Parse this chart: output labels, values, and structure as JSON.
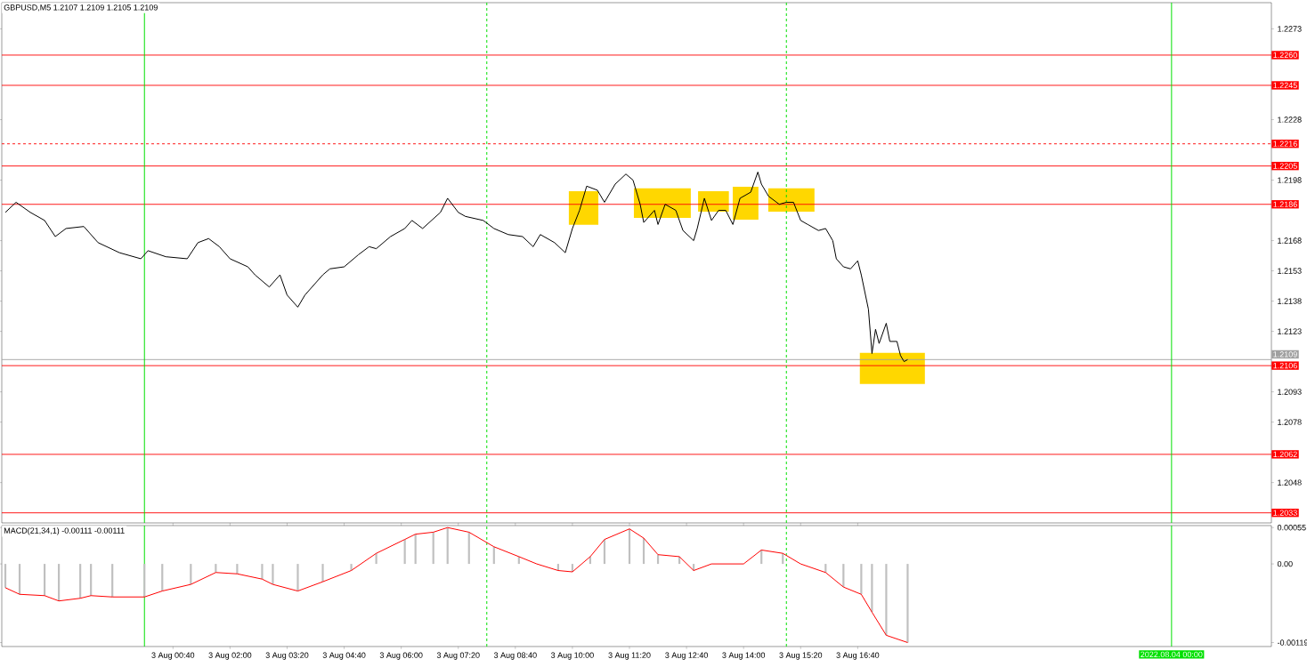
{
  "chart_data": [
    {
      "type": "line",
      "title": "GBPUSD,M5 1.2107 1.2109 1.2105 1.2109",
      "xlim": [
        "2022-08-02T20:40",
        "2022-08-04T02:20"
      ],
      "ylim": [
        1.2028,
        1.2286
      ],
      "tick_labels": "y",
      "yticks": [
        1.2273,
        1.2228,
        1.2198,
        1.2168,
        1.2153,
        1.2138,
        1.2123,
        1.2093,
        1.2078,
        1.2048
      ],
      "series": [
        {
          "color": "#000000",
          "x": [
            "2022-08-02T20:45",
            "2022-08-02T21:00",
            "2022-08-02T21:20",
            "2022-08-02T21:40",
            "2022-08-02T21:55",
            "2022-08-02T22:10",
            "2022-08-02T22:35",
            "2022-08-02T22:55",
            "2022-08-02T23:25",
            "2022-08-02T23:55",
            "2022-08-03T00:05",
            "2022-08-03T00:30",
            "2022-08-03T01:00",
            "2022-08-03T01:15",
            "2022-08-03T01:30",
            "2022-08-03T01:45",
            "2022-08-03T02:00",
            "2022-08-03T02:25",
            "2022-08-03T02:35",
            "2022-08-03T02:55",
            "2022-08-03T03:10",
            "2022-08-03T03:20",
            "2022-08-03T03:35",
            "2022-08-03T03:45",
            "2022-08-03T04:10",
            "2022-08-03T04:20",
            "2022-08-03T04:40",
            "2022-08-03T05:00",
            "2022-08-03T05:15",
            "2022-08-03T05:25",
            "2022-08-03T05:45",
            "2022-08-03T06:05",
            "2022-08-03T06:15",
            "2022-08-03T06:30",
            "2022-08-03T06:55",
            "2022-08-03T07:05",
            "2022-08-03T07:20",
            "2022-08-03T07:30",
            "2022-08-03T07:55",
            "2022-08-03T08:10",
            "2022-08-03T08:30",
            "2022-08-03T08:50",
            "2022-08-03T09:05",
            "2022-08-03T09:15",
            "2022-08-03T09:35",
            "2022-08-03T09:50",
            "2022-08-03T10:00",
            "2022-08-03T10:10",
            "2022-08-03T10:20",
            "2022-08-03T10:35",
            "2022-08-03T10:45",
            "2022-08-03T11:00",
            "2022-08-03T11:15",
            "2022-08-03T11:25",
            "2022-08-03T11:35",
            "2022-08-03T11:40",
            "2022-08-03T11:55",
            "2022-08-03T12:00",
            "2022-08-03T12:10",
            "2022-08-03T12:25",
            "2022-08-03T12:35",
            "2022-08-03T12:50",
            "2022-08-03T12:55",
            "2022-08-03T13:05",
            "2022-08-03T13:15",
            "2022-08-03T13:25",
            "2022-08-03T13:35",
            "2022-08-03T13:45",
            "2022-08-03T13:55",
            "2022-08-03T14:10",
            "2022-08-03T14:20",
            "2022-08-03T14:25",
            "2022-08-03T14:35",
            "2022-08-03T14:50",
            "2022-08-03T15:00",
            "2022-08-03T15:10",
            "2022-08-03T15:20",
            "2022-08-03T15:30",
            "2022-08-03T15:45",
            "2022-08-03T15:55",
            "2022-08-03T16:05",
            "2022-08-03T16:10",
            "2022-08-03T16:20",
            "2022-08-03T16:30",
            "2022-08-03T16:40",
            "2022-08-03T16:45",
            "2022-08-03T16:55",
            "2022-08-03T17:00",
            "2022-08-03T17:05",
            "2022-08-03T17:10",
            "2022-08-03T17:20",
            "2022-08-03T17:25",
            "2022-08-03T17:35",
            "2022-08-03T17:40",
            "2022-08-03T17:45",
            "2022-08-03T17:50"
          ],
          "values": [
            1.2182,
            1.2187,
            1.2182,
            1.2178,
            1.217,
            1.2174,
            1.2175,
            1.2167,
            1.2162,
            1.2159,
            1.2163,
            1.216,
            1.2159,
            1.2167,
            1.2169,
            1.2165,
            1.2159,
            1.2155,
            1.2151,
            1.2145,
            1.2151,
            1.2141,
            1.2135,
            1.2141,
            1.2151,
            1.2154,
            1.2155,
            1.2161,
            1.2165,
            1.2164,
            1.217,
            1.2174,
            1.2178,
            1.2174,
            1.2182,
            1.2189,
            1.2182,
            1.218,
            1.2178,
            1.2174,
            1.2171,
            1.217,
            1.2165,
            1.2171,
            1.2167,
            1.2162,
            1.2174,
            1.2183,
            1.2195,
            1.2193,
            1.2187,
            1.2196,
            1.2201,
            1.2198,
            1.2186,
            1.2177,
            1.2183,
            1.2176,
            1.2186,
            1.2183,
            1.2173,
            1.2168,
            1.2174,
            1.2189,
            1.2178,
            1.2183,
            1.2183,
            1.2176,
            1.2189,
            1.2192,
            1.2202,
            1.2196,
            1.219,
            1.2186,
            1.2187,
            1.2187,
            1.2178,
            1.2176,
            1.2173,
            1.2174,
            1.2168,
            1.2159,
            1.2155,
            1.2154,
            1.2158,
            1.2151,
            1.2134,
            1.2112,
            1.2124,
            1.2117,
            1.2127,
            1.2118,
            1.2118,
            1.2111,
            1.2108,
            1.2109
          ]
        }
      ],
      "ref_lines": [
        {
          "axis": "y",
          "value": 1.226,
          "label": "1.2260",
          "color": "#ff0000"
        },
        {
          "axis": "y",
          "value": 1.2245,
          "label": "1.2245",
          "color": "#ff0000"
        },
        {
          "axis": "y",
          "value": 1.2216,
          "label": "1.2216",
          "color": "#ff0000",
          "line_style": "dashed"
        },
        {
          "axis": "y",
          "value": 1.2205,
          "label": "1.2205",
          "color": "#ff0000"
        },
        {
          "axis": "y",
          "value": 1.2186,
          "label": "1.2186",
          "color": "#ff0000"
        },
        {
          "axis": "y",
          "value": 1.2106,
          "label": "1.2106",
          "color": "#ff0000"
        },
        {
          "axis": "y",
          "value": 1.2109,
          "label": "1.2109",
          "color": "#a0a0a0"
        },
        {
          "axis": "y",
          "value": 1.2062,
          "label": "1.2062",
          "color": "#ff0000"
        },
        {
          "axis": "y",
          "value": 1.2033,
          "label": "1.2033",
          "color": "#ff0000"
        },
        {
          "axis": "x",
          "value": "2022-08-03T00:00",
          "color": "#00e000"
        },
        {
          "axis": "x",
          "value": "2022-08-04T00:00",
          "color": "#00e000"
        },
        {
          "axis": "x",
          "value": "2022-08-03T08:00",
          "color": "#00e000",
          "line_style": "dashed"
        },
        {
          "axis": "x",
          "value": "2022-08-03T15:00",
          "color": "#00e000",
          "line_style": "dashed"
        }
      ]
    },
    {
      "type": "bar",
      "title": "MACD(21,34,1) -0.00111 -0.00111",
      "xlim": [
        "2022-08-02T20:40",
        "2022-08-04T02:20"
      ],
      "ylim": [
        -0.00125,
        0.00058
      ],
      "xticks": [
        {
          "value": "2022-08-03T00:40",
          "label": "3 Aug 00:40"
        },
        {
          "value": "2022-08-03T02:00",
          "label": "3 Aug 02:00"
        },
        {
          "value": "2022-08-03T03:20",
          "label": "3 Aug 03:20"
        },
        {
          "value": "2022-08-03T04:40",
          "label": "3 Aug 04:40"
        },
        {
          "value": "2022-08-03T06:00",
          "label": "3 Aug 06:00"
        },
        {
          "value": "2022-08-03T07:20",
          "label": "3 Aug 07:20"
        },
        {
          "value": "2022-08-03T08:40",
          "label": "3 Aug 08:40"
        },
        {
          "value": "2022-08-03T10:00",
          "label": "3 Aug 10:00"
        },
        {
          "value": "2022-08-03T11:20",
          "label": "3 Aug 11:20"
        },
        {
          "value": "2022-08-03T12:40",
          "label": "3 Aug 12:40"
        },
        {
          "value": "2022-08-03T14:00",
          "label": "3 Aug 14:00"
        },
        {
          "value": "2022-08-03T15:20",
          "label": "3 Aug 15:20"
        },
        {
          "value": "2022-08-03T16:40",
          "label": "3 Aug 16:40"
        }
      ],
      "yticks": [
        0.00055,
        {
          "value": 0,
          "label": "0.00"
        },
        -0.00119
      ],
      "x": [
        "2022-08-02T20:45",
        "2022-08-02T21:05",
        "2022-08-02T21:40",
        "2022-08-02T22:00",
        "2022-08-02T22:30",
        "2022-08-02T22:45",
        "2022-08-02T23:15",
        "2022-08-03T00:00",
        "2022-08-03T00:25",
        "2022-08-03T01:05",
        "2022-08-03T01:40",
        "2022-08-03T02:10",
        "2022-08-03T02:45",
        "2022-08-03T03:00",
        "2022-08-03T03:35",
        "2022-08-03T04:10",
        "2022-08-03T04:50",
        "2022-08-03T05:25",
        "2022-08-03T06:05",
        "2022-08-03T06:20",
        "2022-08-03T06:45",
        "2022-08-03T07:05",
        "2022-08-03T07:35",
        "2022-08-03T08:10",
        "2022-08-03T08:45",
        "2022-08-03T09:10",
        "2022-08-03T09:40",
        "2022-08-03T10:00",
        "2022-08-03T10:25",
        "2022-08-03T10:45",
        "2022-08-03T11:20",
        "2022-08-03T11:40",
        "2022-08-03T12:00",
        "2022-08-03T12:30",
        "2022-08-03T12:50",
        "2022-08-03T13:15",
        "2022-08-03T13:45",
        "2022-08-03T14:00",
        "2022-08-03T14:25",
        "2022-08-03T14:55",
        "2022-08-03T15:20",
        "2022-08-03T15:55",
        "2022-08-03T16:20",
        "2022-08-03T16:45",
        "2022-08-03T17:00",
        "2022-08-03T17:20",
        "2022-08-03T17:50"
      ],
      "series": [
        {
          "type": "bar",
          "color": "#c0c0c0",
          "values": [
            -0.00036,
            -0.00046,
            -0.00048,
            -0.00056,
            -0.00052,
            -0.00048,
            -0.0005,
            -0.0005,
            -0.00041,
            -0.00031,
            -0.00013,
            -0.00015,
            -0.00023,
            -0.00031,
            -0.00041,
            -0.00027,
            -0.0001,
            0.00016,
            0.00037,
            0.00045,
            0.00048,
            0.00055,
            0.00048,
            0.00026,
            0.00011,
            0,
            -0.0001,
            -0.00012,
            0.00011,
            0.00037,
            0.00053,
            0.00039,
            0.00014,
            0.00011,
            -0.0001,
            0,
            0,
            0,
            0.00021,
            0.00016,
            0,
            -0.00013,
            -0.00035,
            -0.00046,
            -0.00073,
            -0.00108,
            -0.00119
          ]
        },
        {
          "type": "line",
          "color": "#ff0000",
          "values": [
            -0.00036,
            -0.00046,
            -0.00048,
            -0.00056,
            -0.00052,
            -0.00048,
            -0.0005,
            -0.0005,
            -0.00041,
            -0.00031,
            -0.00013,
            -0.00015,
            -0.00023,
            -0.00031,
            -0.00041,
            -0.00027,
            -0.0001,
            0.00016,
            0.00037,
            0.00045,
            0.00048,
            0.00055,
            0.00048,
            0.00026,
            0.00011,
            0,
            -0.0001,
            -0.00012,
            0.00011,
            0.00037,
            0.00053,
            0.00039,
            0.00014,
            0.00011,
            -0.0001,
            0,
            0,
            0,
            0.00021,
            0.00016,
            0,
            -0.00013,
            -0.00035,
            -0.00046,
            -0.00073,
            -0.00108,
            -0.00119
          ]
        }
      ],
      "ref_lines": [
        {
          "axis": "x",
          "value": "2022-08-03T00:00",
          "color": "#00e000"
        },
        {
          "axis": "x",
          "value": "2022-08-04T00:00",
          "color": "#00e000",
          "label": "2022.08.04 00:00"
        },
        {
          "axis": "x",
          "value": "2022-08-03T08:00",
          "color": "#00e000",
          "line_style": "dashed"
        },
        {
          "axis": "x",
          "value": "2022-08-03T15:00",
          "color": "#00e000",
          "line_style": "dashed"
        }
      ]
    }
  ]
}
